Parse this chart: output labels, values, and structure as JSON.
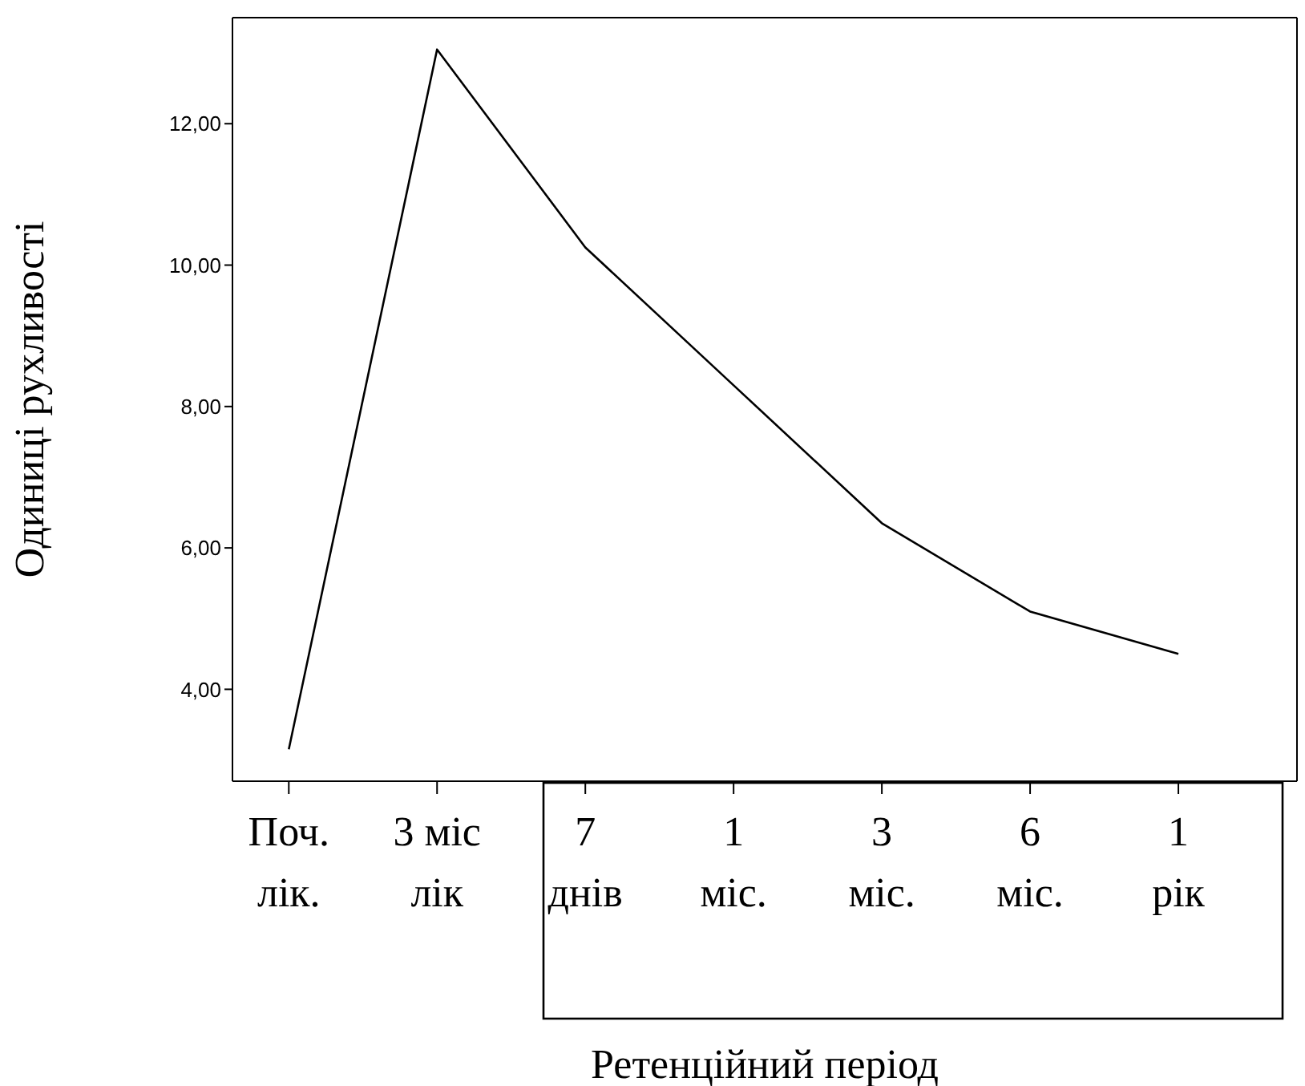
{
  "chart_data": {
    "type": "line",
    "xlabel": "Ретенційний період",
    "ylabel": "Одиниці рухливості",
    "categories": [
      "Поч.\nлік.",
      "3 міс\nлік",
      "7\nднів",
      "1\nміс.",
      "3\nміс.",
      "6\nміс.",
      "1\nрік"
    ],
    "values": [
      3.15,
      13.05,
      10.25,
      8.3,
      6.35,
      5.1,
      4.5
    ],
    "color": "#000000",
    "ylim": [
      2.7,
      13.5
    ],
    "yticks": [
      {
        "value": 4,
        "label": "4,00"
      },
      {
        "value": 6,
        "label": "6,00"
      },
      {
        "value": 8,
        "label": "8,00"
      },
      {
        "value": 10,
        "label": "10,00"
      },
      {
        "value": 12,
        "label": "12,00"
      }
    ],
    "grid": false,
    "marker": "none",
    "line_style": "solid"
  }
}
